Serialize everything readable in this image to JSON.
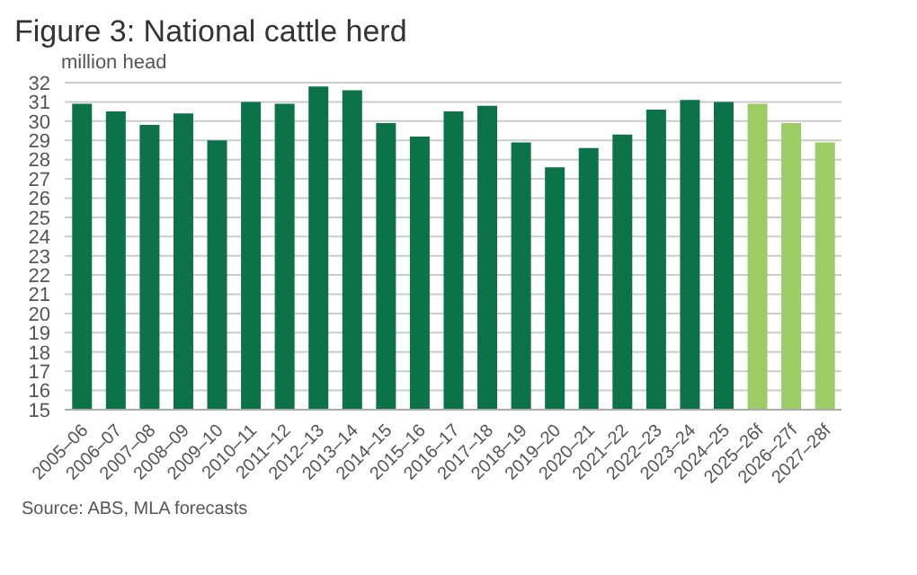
{
  "chart_data": {
    "type": "bar",
    "title": "Figure 3: National cattle herd",
    "ylabel": "million head",
    "categories": [
      "2005–06",
      "2006–07",
      "2007–08",
      "2008–09",
      "2009–10",
      "2010–11",
      "2011–12",
      "2012–13",
      "2013–14",
      "2014–15",
      "2015–16",
      "2016–17",
      "2017–18",
      "2018–19",
      "2019–20",
      "2020–21",
      "2021–22",
      "2022–23",
      "2023–24",
      "2024–25",
      "2025–26f",
      "2026–27f",
      "2027–28f"
    ],
    "values": [
      30.9,
      30.5,
      29.8,
      30.4,
      29.0,
      31.0,
      30.9,
      31.8,
      31.6,
      29.9,
      29.2,
      30.5,
      30.8,
      28.9,
      27.6,
      28.6,
      29.3,
      30.6,
      31.1,
      31.0,
      30.9,
      29.9,
      28.9
    ],
    "colors": [
      "#0b7249",
      "#0b7249",
      "#0b7249",
      "#0b7249",
      "#0b7249",
      "#0b7249",
      "#0b7249",
      "#0b7249",
      "#0b7249",
      "#0b7249",
      "#0b7249",
      "#0b7249",
      "#0b7249",
      "#0b7249",
      "#0b7249",
      "#0b7249",
      "#0b7249",
      "#0b7249",
      "#0b7249",
      "#0b7249",
      "#9dcc64",
      "#9dcc64",
      "#9dcc64"
    ],
    "ylim": [
      15,
      32
    ],
    "yticks": [
      15,
      16,
      17,
      18,
      19,
      20,
      21,
      22,
      23,
      24,
      25,
      26,
      27,
      28,
      29,
      30,
      31,
      32
    ],
    "grid": "y",
    "annotations": [
      "Source: ABS, MLA forecasts"
    ]
  }
}
